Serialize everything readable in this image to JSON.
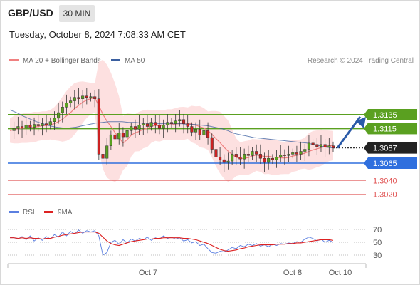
{
  "header": {
    "symbol": "GBP/USD",
    "timeframe": "30 MIN",
    "datetime": "Tuesday, October 8, 2024 7:08:33 AM CET"
  },
  "legend": {
    "ma20_label": "MA 20 + Bollinger Bands",
    "ma50_label": "MA 50",
    "rsi_label": "RSI",
    "ma9_label": "9MA",
    "copyright": "Research © 2024 Trading Central"
  },
  "colors": {
    "ma20": "#f08080",
    "ma50": "#3a5fa0",
    "bollinger_fill": "#fde0e0",
    "resistance": "#5aa020",
    "support": "#2f6fde",
    "target_red": "#e05050",
    "current_price": "#222222",
    "rsi": "#5b7fe0",
    "rsi_ma": "#dd2222",
    "candle_up": "#5aa020",
    "candle_down": "#cc2222"
  },
  "chart_data": {
    "type": "candlestick",
    "ylim": [
      1.299,
      1.3155
    ],
    "x_ticks": [
      "Oct 7",
      "Oct 8",
      "Oct 10"
    ],
    "levels": [
      {
        "label": "1.3135",
        "value": 1.3135,
        "kind": "resistance"
      },
      {
        "label": "1.3115",
        "value": 1.3115,
        "kind": "resistance"
      },
      {
        "label": "1.3087",
        "value": 1.3087,
        "kind": "current"
      },
      {
        "label": "1.3065",
        "value": 1.3065,
        "kind": "support"
      },
      {
        "label": "1.3040",
        "value": 1.304,
        "kind": "target"
      },
      {
        "label": "1.3020",
        "value": 1.302,
        "kind": "target"
      }
    ],
    "closes": [
      1.3112,
      1.3115,
      1.3118,
      1.3116,
      1.312,
      1.3117,
      1.3121,
      1.3119,
      1.3122,
      1.312,
      1.3125,
      1.313,
      1.3138,
      1.3146,
      1.3152,
      1.3155,
      1.316,
      1.3158,
      1.3162,
      1.316,
      1.3161,
      1.3158,
      1.3078,
      1.3072,
      1.309,
      1.3106,
      1.31,
      1.3109,
      1.3103,
      1.3112,
      1.3118,
      1.3114,
      1.312,
      1.3122,
      1.3118,
      1.3124,
      1.312,
      1.3115,
      1.312,
      1.3124,
      1.3122,
      1.3126,
      1.3128,
      1.3122,
      1.3118,
      1.311,
      1.3114,
      1.3106,
      1.3112,
      1.3102,
      1.3085,
      1.3074,
      1.307,
      1.3066,
      1.3068,
      1.3078,
      1.3074,
      1.3071,
      1.3078,
      1.3076,
      1.3082,
      1.3078,
      1.3072,
      1.3066,
      1.3072,
      1.307,
      1.3074,
      1.3077,
      1.3076,
      1.3078,
      1.308,
      1.3078,
      1.3082,
      1.3085,
      1.3094,
      1.3092,
      1.3089,
      1.3092,
      1.3088,
      1.309,
      1.3087
    ],
    "ma50": [
      1.3142,
      1.3138,
      1.3133,
      1.3129,
      1.3125,
      1.3122,
      1.3119,
      1.3117,
      1.3116,
      1.3116,
      1.3117,
      1.3119,
      1.3121,
      1.3123,
      1.3124,
      1.3125,
      1.3125,
      1.3125,
      1.3124,
      1.3124,
      1.3123,
      1.3123,
      1.3122,
      1.3122,
      1.3122,
      1.3122,
      1.3122,
      1.3121,
      1.3121,
      1.312,
      1.3119,
      1.3117,
      1.3115,
      1.3112,
      1.3108,
      1.3106,
      1.3104,
      1.3102,
      1.3101,
      1.31,
      1.3099,
      1.3098,
      1.3097,
      1.3096,
      1.3095,
      1.3094,
      1.3092,
      1.309,
      1.3088,
      1.3087
    ],
    "rsi_ticks": [
      70,
      50,
      30
    ],
    "rsi": [
      58,
      57,
      55,
      59,
      54,
      60,
      52,
      57,
      53,
      59,
      55,
      62,
      58,
      66,
      60,
      67,
      63,
      69,
      64,
      68,
      66,
      68,
      60,
      30,
      34,
      50,
      53,
      47,
      54,
      49,
      55,
      52,
      56,
      54,
      58,
      53,
      57,
      55,
      60,
      56,
      58,
      55,
      57,
      52,
      54,
      49,
      51,
      45,
      47,
      40,
      34,
      33,
      36,
      35,
      38,
      42,
      40,
      45,
      43,
      47,
      45,
      48,
      44,
      46,
      43,
      47,
      45,
      48,
      47,
      49,
      48,
      51,
      50,
      55,
      58,
      56,
      52,
      55,
      50,
      53,
      50
    ],
    "rsi_ma": [
      57,
      57,
      56,
      57,
      56,
      57,
      56,
      56,
      55,
      56,
      56,
      58,
      59,
      61,
      62,
      63,
      64,
      65,
      66,
      66,
      66,
      66,
      64,
      58,
      52,
      48,
      46,
      45,
      47,
      49,
      51,
      52,
      53,
      54,
      55,
      55,
      56,
      56,
      57,
      57,
      57,
      57,
      57,
      56,
      56,
      55,
      54,
      52,
      50,
      48,
      45,
      42,
      39,
      37,
      36,
      37,
      38,
      40,
      41,
      43,
      44,
      45,
      46,
      46,
      46,
      46,
      47,
      47,
      47,
      48,
      48,
      49,
      49,
      50,
      51,
      52,
      53,
      54,
      54,
      54,
      53
    ]
  }
}
